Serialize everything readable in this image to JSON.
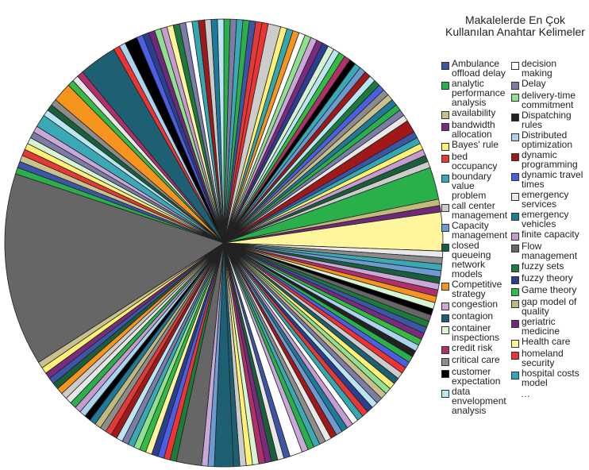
{
  "chart_data": {
    "type": "pie",
    "title": "Makalelerde En Çok Kullanılan Anahtar Kelimeler",
    "legend_position": "right",
    "legend_entries": [
      {
        "label": "Ambulance offload delay",
        "color": "#3b56a6"
      },
      {
        "label": "analytic performance analysis",
        "color": "#2ab04a"
      },
      {
        "label": "availability",
        "color": "#c9c08e"
      },
      {
        "label": "bandwidth allocation",
        "color": "#7a2b7e"
      },
      {
        "label": "Bayes' rule",
        "color": "#fff176"
      },
      {
        "label": "bed occupancy",
        "color": "#e53935"
      },
      {
        "label": "boundary value problem",
        "color": "#3aa9b5"
      },
      {
        "label": "call center management",
        "color": "#cccccc"
      },
      {
        "label": "Capacity management",
        "color": "#6b9bd1"
      },
      {
        "label": "closed queueing network models",
        "color": "#1b5e3b"
      },
      {
        "label": "Competitive strategy",
        "color": "#f7941d"
      },
      {
        "label": "congestion",
        "color": "#c9a8d8"
      },
      {
        "label": "contagion",
        "color": "#1d5f73"
      },
      {
        "label": "container inspections",
        "color": "#d7f5d2"
      },
      {
        "label": "credit risk",
        "color": "#b0306a"
      },
      {
        "label": "critical care",
        "color": "#8c8c8c"
      },
      {
        "label": "customer expectation",
        "color": "#000000"
      },
      {
        "label": "data envelopment analysis",
        "color": "#b9e6f2"
      },
      {
        "label": "decision making",
        "color": "#ffffff"
      },
      {
        "label": "Delay",
        "color": "#7c7ca6"
      },
      {
        "label": "delivery-time commitment",
        "color": "#8fe08f"
      },
      {
        "label": "Dispatching rules",
        "color": "#222222"
      },
      {
        "label": "Distributed optimization",
        "color": "#a9d3ee"
      },
      {
        "label": "dynamic programming",
        "color": "#a01818"
      },
      {
        "label": "dynamic travel times",
        "color": "#4c5ee6"
      },
      {
        "label": "emergency services",
        "color": "#e8e8e8"
      },
      {
        "label": "emergency vehicles",
        "color": "#1f7a9a"
      },
      {
        "label": "finite capacity",
        "color": "#c69bd0"
      },
      {
        "label": "Flow management",
        "color": "#666666"
      },
      {
        "label": "fuzzy sets",
        "color": "#1c7a3a"
      },
      {
        "label": "fuzzy theory",
        "color": "#2a3f8f"
      },
      {
        "label": "Game theory",
        "color": "#33bb44"
      },
      {
        "label": "gap model of quality",
        "color": "#c2b97e"
      },
      {
        "label": "geriatric medicine",
        "color": "#6e2a78"
      },
      {
        "label": "Health care",
        "color": "#fff59d"
      },
      {
        "label": "homeland security",
        "color": "#ee3333"
      },
      {
        "label": "hospital costs model",
        "color": "#33a8b3"
      }
    ],
    "legend_more": "…",
    "slice_palette": [
      "#3b56a6",
      "#2ab04a",
      "#c9c08e",
      "#7a2b7e",
      "#fff176",
      "#e53935",
      "#3aa9b5",
      "#cccccc",
      "#6b9bd1",
      "#1b5e3b",
      "#f7941d",
      "#c9a8d8",
      "#1d5f73",
      "#d7f5d2",
      "#b0306a",
      "#8c8c8c",
      "#000000",
      "#b9e6f2",
      "#ffffff",
      "#7c7ca6",
      "#8fe08f",
      "#222222",
      "#a9d3ee",
      "#a01818",
      "#4c5ee6",
      "#e8e8e8",
      "#1f7a9a",
      "#c69bd0",
      "#666666",
      "#1c7a3a",
      "#2a3f8f",
      "#33bb44",
      "#c2b97e",
      "#6e2a78",
      "#fff59d",
      "#ee3333",
      "#33a8b3"
    ],
    "slices_note": "approximately 150 slices starting at 12 o'clock going clockwise; values are relative weights estimated from the image",
    "values": [
      1,
      1,
      1,
      1,
      1,
      1,
      1,
      2,
      1,
      1,
      1,
      1,
      1,
      1,
      1,
      1,
      1,
      1,
      1,
      1,
      1,
      1,
      1,
      1,
      1,
      1,
      1,
      1,
      1,
      1,
      1,
      1,
      1,
      2,
      1,
      1,
      1,
      1,
      1,
      1,
      5,
      1,
      1,
      6,
      1,
      1,
      1,
      1,
      1,
      1,
      1,
      1,
      1,
      1,
      1,
      1,
      1,
      1,
      1,
      1,
      1,
      1,
      1,
      1,
      1,
      1,
      1,
      1,
      1,
      1,
      1,
      1,
      1,
      1,
      1,
      1,
      1,
      1,
      1,
      1,
      1,
      1,
      1,
      1,
      2,
      1,
      1,
      1,
      1,
      1,
      1,
      1,
      1,
      1,
      3,
      1,
      1,
      4,
      1,
      1,
      1,
      1,
      1,
      1,
      1,
      1,
      1,
      1,
      1,
      1,
      1,
      1,
      1,
      1,
      1,
      1,
      1,
      1,
      1,
      1,
      1,
      1,
      1,
      1,
      1,
      30,
      1,
      1,
      1,
      1,
      1,
      1,
      1,
      1,
      2,
      1,
      1,
      1,
      3,
      1,
      1,
      1,
      6,
      1,
      1,
      2,
      1,
      1,
      1,
      1,
      1,
      1,
      1,
      1,
      1,
      1,
      1,
      1,
      1,
      1
    ],
    "slice_colors": [
      "#2ab04a",
      "#7c7ca6",
      "#3aa9b5",
      "#2ab04a",
      "#3b56a6",
      "#e53935",
      "#ee3333",
      "#cccccc",
      "#fff176",
      "#33a8b3",
      "#f7941d",
      "#ffffff",
      "#8fe08f",
      "#c9a8d8",
      "#7a2b7e",
      "#2a3f8f",
      "#d7f5d2",
      "#b9e6f2",
      "#33bb44",
      "#b0306a",
      "#000000",
      "#3aa9b5",
      "#6b9bd1",
      "#a01818",
      "#b9e6f2",
      "#1c7a3a",
      "#4c5ee6",
      "#8c8c8c",
      "#c9c08e",
      "#1f7a9a",
      "#2ab04a",
      "#7c7ca6",
      "#e8e8e8",
      "#a01818",
      "#3b56a6",
      "#33a8b3",
      "#fff176",
      "#c69bd0",
      "#1b5e3b",
      "#cccccc",
      "#2ab04a",
      "#c2b97e",
      "#6e2a78",
      "#fff59d",
      "#e8e8e8",
      "#8c8c8c",
      "#3aa9b5",
      "#6b9bd1",
      "#1b5e3b",
      "#c9a8d8",
      "#b0306a",
      "#f7941d",
      "#d7f5d2",
      "#000000",
      "#666666",
      "#1c7a3a",
      "#3b56a6",
      "#7a2b7e",
      "#33bb44",
      "#a9d3ee",
      "#222222",
      "#2ab04a",
      "#4c5ee6",
      "#ee3333",
      "#cccccc",
      "#1d5f73",
      "#fff176",
      "#8fe08f",
      "#c9c08e",
      "#7c7ca6",
      "#b9e6f2",
      "#2a3f8f",
      "#e53935",
      "#33a8b3",
      "#ffffff",
      "#c69bd0",
      "#1f7a9a",
      "#6b9bd1",
      "#a01818",
      "#e8e8e8",
      "#8c8c8c",
      "#3aa9b5",
      "#2ab04a",
      "#c9a8d8",
      "#ffffff",
      "#3b56a6",
      "#e8e8e8",
      "#1b5e3b",
      "#7a2b7e",
      "#b0306a",
      "#d7f5d2",
      "#fff176",
      "#cccccc",
      "#1d5f73",
      "#1d5f73",
      "#6b9bd1",
      "#c9a8d8",
      "#666666",
      "#1c7a3a",
      "#ee3333",
      "#4c5ee6",
      "#2a3f8f",
      "#fff59d",
      "#33bb44",
      "#8fe08f",
      "#3aa9b5",
      "#7c7ca6",
      "#b9e6f2",
      "#a01818",
      "#e53935",
      "#8c8c8c",
      "#c2b97e",
      "#1f7a9a",
      "#000000",
      "#a9d3ee",
      "#c69bd0",
      "#2ab04a",
      "#e8e8e8",
      "#cccccc",
      "#f7941d",
      "#1b5e3b",
      "#3b56a6",
      "#7a2b7e",
      "#fff176",
      "#c9c08e",
      "#666666",
      "#2ab04a",
      "#3b56a6",
      "#c9c08e",
      "#e53935",
      "#fff176",
      "#d7f5d2",
      "#7c7ca6",
      "#c9a8d8",
      "#3aa9b5",
      "#b9e6f2",
      "#1b5e3b",
      "#8c8c8c",
      "#f7941d",
      "#33bb44",
      "#e8e8e8",
      "#b0306a",
      "#1d5f73",
      "#ee3333",
      "#a9d3ee",
      "#000000",
      "#4c5ee6",
      "#2a3f8f",
      "#6e2a78",
      "#8fe08f",
      "#c69bd0",
      "#fff59d",
      "#1c7a3a",
      "#7c7ca6",
      "#ffffff",
      "#33a8b3",
      "#a01818",
      "#cccccc",
      "#1f7a9a",
      "#b9e6f2"
    ]
  }
}
